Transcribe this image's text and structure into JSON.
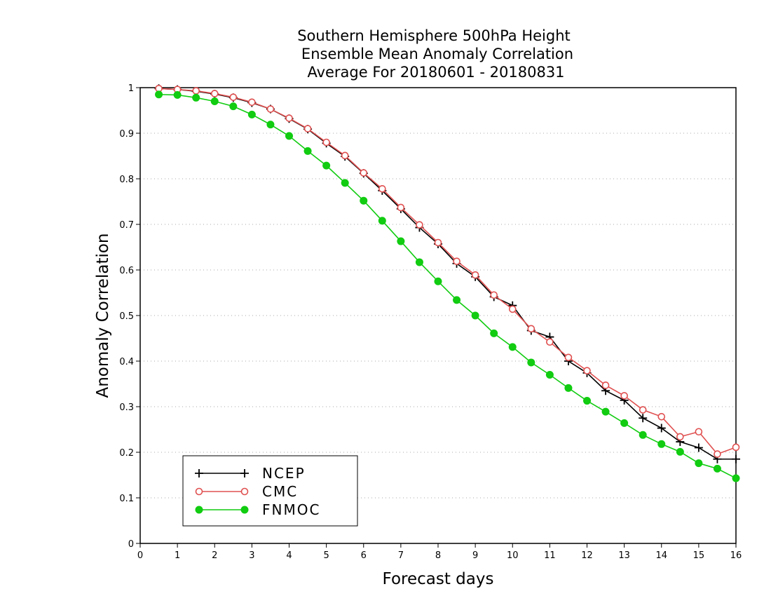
{
  "chart_data": {
    "type": "line",
    "title": [
      "Southern Hemisphere 500hPa Height",
      "Ensemble Mean Anomaly Correlation",
      "Average For 20180601 - 20180831"
    ],
    "xlabel": "Forecast days",
    "ylabel": "Anomaly Correlation",
    "xlim": [
      0,
      16
    ],
    "ylim": [
      0,
      1
    ],
    "xticks": [
      "0",
      "1",
      "2",
      "3",
      "4",
      "5",
      "6",
      "7",
      "8",
      "9",
      "10",
      "11",
      "12",
      "13",
      "14",
      "15",
      "16"
    ],
    "yticks": [
      "0",
      "0.1",
      "0.2",
      "0.3",
      "0.4",
      "0.5",
      "0.6",
      "0.7",
      "0.8",
      "0.9",
      "1"
    ],
    "grid": "horizontal dotted",
    "legend_position": "lower-left",
    "x": [
      0.5,
      1,
      1.5,
      2,
      2.5,
      3,
      3.5,
      4,
      4.5,
      5,
      5.5,
      6,
      6.5,
      7,
      7.5,
      8,
      8.5,
      9,
      9.5,
      10,
      10.5,
      11,
      11.5,
      12,
      12.5,
      13,
      13.5,
      14,
      14.5,
      15,
      15.5,
      16
    ],
    "series": [
      {
        "name": "NCEP",
        "color": "#000000",
        "marker": "plus",
        "values": [
          0.998,
          0.996,
          0.992,
          0.986,
          0.978,
          0.967,
          0.953,
          0.932,
          0.909,
          0.878,
          0.849,
          0.812,
          0.774,
          0.734,
          0.693,
          0.657,
          0.614,
          0.585,
          0.541,
          0.522,
          0.467,
          0.453,
          0.4,
          0.374,
          0.335,
          0.314,
          0.275,
          0.253,
          0.223,
          0.21,
          0.185,
          0.185
        ]
      },
      {
        "name": "CMC",
        "color": "#e05050",
        "marker": "open-circle",
        "values": [
          0.998,
          0.996,
          0.993,
          0.987,
          0.979,
          0.968,
          0.953,
          0.933,
          0.91,
          0.88,
          0.851,
          0.813,
          0.778,
          0.737,
          0.699,
          0.66,
          0.619,
          0.589,
          0.545,
          0.514,
          0.471,
          0.442,
          0.408,
          0.379,
          0.347,
          0.324,
          0.293,
          0.278,
          0.234,
          0.245,
          0.196,
          0.211
        ]
      },
      {
        "name": "FNMOC",
        "color": "#11cc11",
        "marker": "filled-circle",
        "values": [
          0.985,
          0.984,
          0.978,
          0.97,
          0.959,
          0.941,
          0.919,
          0.894,
          0.861,
          0.829,
          0.791,
          0.752,
          0.708,
          0.663,
          0.617,
          0.575,
          0.534,
          0.5,
          0.461,
          0.431,
          0.397,
          0.37,
          0.341,
          0.313,
          0.289,
          0.264,
          0.238,
          0.218,
          0.201,
          0.176,
          0.164,
          0.143
        ]
      }
    ]
  }
}
